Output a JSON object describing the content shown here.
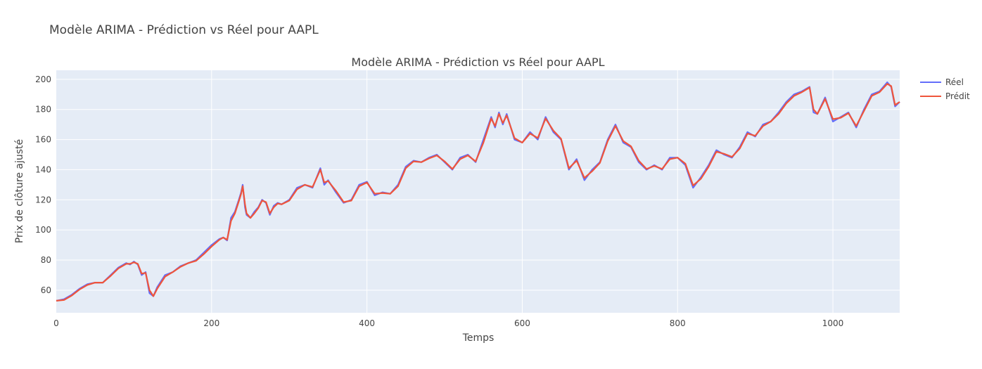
{
  "page_title": "Modèle ARIMA - Prédiction vs Réel pour AAPL",
  "chart_data": {
    "type": "line",
    "title": "Modèle ARIMA - Prédiction vs Réel pour AAPL",
    "xlabel": "Temps",
    "ylabel": "Prix de clôture ajusté",
    "xlim": [
      0,
      1086
    ],
    "ylim": [
      45,
      206
    ],
    "xticks": [
      0,
      200,
      400,
      600,
      800,
      1000
    ],
    "yticks": [
      60,
      80,
      100,
      120,
      140,
      160,
      180,
      200
    ],
    "grid": true,
    "legend_position": "top-right outside",
    "background_color": "#e5ecf6",
    "x": [
      0,
      10,
      20,
      30,
      40,
      50,
      60,
      70,
      80,
      90,
      95,
      100,
      105,
      110,
      115,
      120,
      125,
      130,
      140,
      150,
      160,
      170,
      180,
      190,
      200,
      210,
      215,
      220,
      225,
      230,
      235,
      238,
      240,
      243,
      245,
      250,
      255,
      260,
      265,
      270,
      275,
      280,
      285,
      290,
      300,
      310,
      320,
      330,
      340,
      345,
      350,
      360,
      370,
      380,
      390,
      400,
      410,
      420,
      430,
      440,
      450,
      460,
      470,
      480,
      490,
      500,
      510,
      520,
      530,
      540,
      550,
      560,
      565,
      570,
      575,
      580,
      590,
      600,
      610,
      620,
      630,
      640,
      650,
      660,
      670,
      680,
      690,
      700,
      710,
      720,
      730,
      740,
      750,
      760,
      770,
      780,
      790,
      800,
      810,
      820,
      830,
      840,
      850,
      860,
      870,
      880,
      890,
      900,
      910,
      920,
      930,
      940,
      950,
      960,
      970,
      975,
      980,
      990,
      1000,
      1010,
      1020,
      1030,
      1040,
      1050,
      1060,
      1070,
      1075,
      1080,
      1086
    ],
    "series": [
      {
        "name": "Réel",
        "color": "#636efa",
        "values": [
          53,
          54,
          57,
          61,
          64,
          65,
          65,
          70,
          75,
          78,
          77,
          79,
          77,
          70,
          72,
          58,
          56,
          62,
          70,
          72,
          76,
          78,
          80,
          85,
          90,
          94,
          95,
          93,
          108,
          112,
          120,
          125,
          130,
          115,
          110,
          108,
          112,
          115,
          120,
          118,
          110,
          116,
          118,
          117,
          120,
          128,
          130,
          128,
          141,
          130,
          133,
          125,
          118,
          120,
          130,
          132,
          123,
          125,
          124,
          130,
          142,
          146,
          145,
          148,
          150,
          145,
          140,
          148,
          150,
          145,
          160,
          175,
          168,
          178,
          170,
          177,
          160,
          158,
          165,
          160,
          175,
          165,
          160,
          140,
          147,
          133,
          140,
          145,
          160,
          170,
          158,
          155,
          145,
          140,
          143,
          140,
          148,
          148,
          143,
          128,
          135,
          143,
          153,
          150,
          148,
          155,
          165,
          162,
          170,
          172,
          178,
          185,
          190,
          192,
          195,
          178,
          177,
          188,
          172,
          175,
          178,
          168,
          180,
          190,
          192,
          198,
          195,
          182,
          185
        ]
      },
      {
        "name": "Prédit",
        "color": "#ef553b",
        "values": [
          53,
          53.5,
          56.5,
          60.5,
          63.5,
          65,
          65,
          69.5,
          74.5,
          77.5,
          77.5,
          78.5,
          77.5,
          71,
          71.5,
          60,
          56,
          61,
          69,
          72,
          75.5,
          78,
          79.5,
          84,
          89,
          93.5,
          95,
          93.5,
          106,
          111,
          119,
          124,
          129,
          117,
          111,
          108,
          111,
          114.5,
          119.5,
          118.5,
          111,
          115,
          117.5,
          117,
          119.5,
          127,
          130,
          128.5,
          140,
          131.5,
          132.5,
          126,
          118.5,
          119.5,
          129,
          131.5,
          124,
          124.5,
          124,
          129,
          141,
          145.5,
          145,
          147.5,
          149.5,
          145.5,
          140.5,
          147,
          149.5,
          145.5,
          158,
          174,
          169,
          177,
          171,
          176,
          161,
          158,
          164,
          161,
          174,
          166,
          160.5,
          141,
          146,
          134.5,
          139,
          144.5,
          159,
          169,
          159,
          155.5,
          146,
          140.5,
          142.5,
          140.5,
          147,
          148,
          144,
          129.5,
          134,
          142,
          152,
          150.5,
          148.5,
          154,
          164,
          162.5,
          169,
          172,
          177,
          184,
          189,
          191.5,
          194.5,
          180,
          177,
          187,
          173.5,
          174.5,
          177.5,
          169,
          179,
          189,
          191.5,
          197,
          195.5,
          183,
          185
        ]
      }
    ]
  }
}
